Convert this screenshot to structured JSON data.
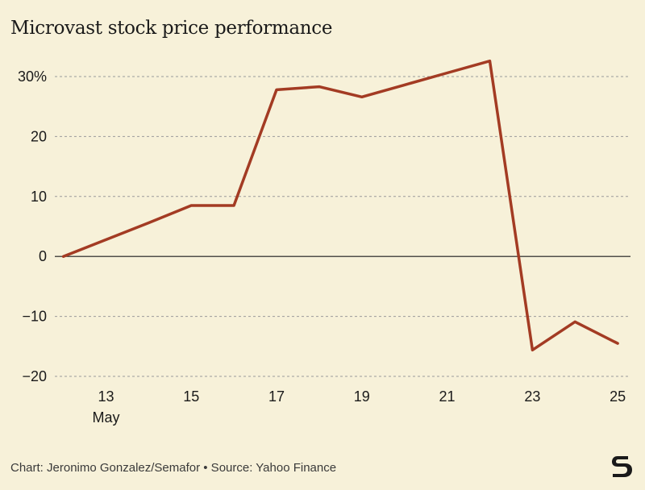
{
  "title": "Microvast stock price performance",
  "source": "Chart: Jeronimo Gonzalez/Semafor • Source: Yahoo Finance",
  "chart_data": {
    "type": "line",
    "title": "Microvast stock price performance",
    "xlabel": "",
    "ylabel": "",
    "x": [
      12,
      13,
      14,
      15,
      16,
      17,
      18,
      19,
      20,
      21,
      22,
      23,
      24,
      25
    ],
    "x_month": "May",
    "xticks": [
      13,
      15,
      17,
      19,
      21,
      23,
      25
    ],
    "xtick_labels": [
      "13",
      "15",
      "17",
      "19",
      "21",
      "23",
      "25"
    ],
    "x_sub_label": "May",
    "xlim": [
      11.8,
      25.3
    ],
    "yticks": [
      30,
      20,
      10,
      0,
      -10,
      -20
    ],
    "ytick_labels": [
      "30%",
      "20",
      "10",
      "0",
      "−10",
      "−20"
    ],
    "ylim": [
      -20,
      33
    ],
    "grid": true,
    "series": [
      {
        "values": [
          0,
          2.8,
          5.6,
          8.5,
          8.5,
          27.8,
          28.3,
          26.6,
          28.6,
          30.6,
          32.6,
          -15.6,
          -10.9,
          -14.5
        ],
        "color": "#a33b23"
      }
    ],
    "colors": {
      "background": "#f7f1d9",
      "line": "#a33b23",
      "grid": "#9a9a9a",
      "zero": "#1a1a1a"
    }
  }
}
